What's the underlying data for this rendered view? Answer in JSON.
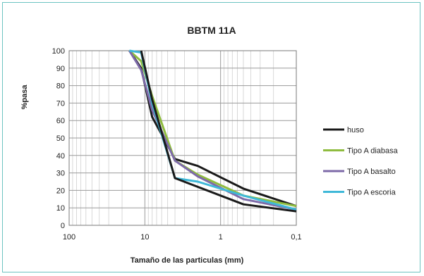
{
  "chart_data": {
    "type": "line",
    "title": "BBTM 11A",
    "xlabel": "Tamaño de las particulas (mm)",
    "ylabel": "%pasa",
    "x_scale": "log",
    "x_reversed": true,
    "xlim": [
      100,
      0.1
    ],
    "ylim": [
      0,
      100
    ],
    "x_ticks": [
      100,
      10,
      1,
      0.1
    ],
    "x_tick_labels": [
      "100",
      "10",
      "1",
      "0,1"
    ],
    "y_ticks": [
      0,
      10,
      20,
      30,
      40,
      50,
      60,
      70,
      80,
      90,
      100
    ],
    "grid": true,
    "legend_position": "right",
    "series": [
      {
        "name": "huso",
        "color": "#1a1a1a",
        "points": [
          [
            16,
            100
          ],
          [
            11.2,
            90
          ],
          [
            8,
            62
          ],
          [
            4,
            38
          ],
          [
            2,
            34
          ],
          [
            0.5,
            21
          ],
          [
            0.063,
            11
          ]
        ]
      },
      {
        "name": "Tipo A diabasa",
        "color": "#8fbc3f",
        "points": [
          [
            16,
            100
          ],
          [
            11.2,
            94
          ],
          [
            8,
            74
          ],
          [
            4,
            37
          ],
          [
            2,
            29
          ],
          [
            0.5,
            17
          ],
          [
            0.063,
            11
          ]
        ]
      },
      {
        "name": "Tipo A basalto",
        "color": "#7d6aa8",
        "points": [
          [
            16,
            100
          ],
          [
            11.2,
            89
          ],
          [
            8,
            66
          ],
          [
            4,
            37
          ],
          [
            2,
            28
          ],
          [
            0.5,
            15
          ],
          [
            0.063,
            9
          ]
        ]
      },
      {
        "name": "Tipo A escoria",
        "color": "#3fb8d8",
        "points": [
          [
            16,
            100
          ],
          [
            11.2,
            99
          ],
          [
            8,
            70
          ],
          [
            4,
            27
          ],
          [
            2,
            25
          ],
          [
            0.5,
            17
          ],
          [
            0.063,
            9
          ]
        ]
      },
      {
        "name": "",
        "color": "#1a1a1a",
        "points": [
          [
            11.2,
            100
          ],
          [
            8,
            72
          ],
          [
            4,
            27
          ],
          [
            0.5,
            12
          ],
          [
            0.063,
            8
          ]
        ]
      }
    ]
  }
}
